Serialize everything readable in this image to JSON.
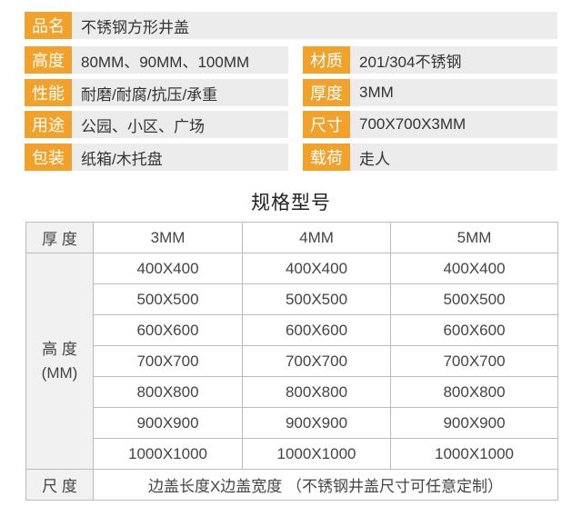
{
  "specs": [
    [
      {
        "label": "品名",
        "value": "不锈钢方形井盖"
      }
    ],
    [
      {
        "label": "高度",
        "value": "80MM、90MM、100MM"
      },
      {
        "label": "材质",
        "value": "201/304不锈钢"
      }
    ],
    [
      {
        "label": "性能",
        "value": "耐磨/耐腐/抗压/承重"
      },
      {
        "label": "厚度",
        "value": "3MM"
      }
    ],
    [
      {
        "label": "用途",
        "value": "公园、小区、广场"
      },
      {
        "label": "尺寸",
        "value": "700X700X3MM"
      }
    ],
    [
      {
        "label": "包装",
        "value": "纸箱/木托盘"
      },
      {
        "label": "载荷",
        "value": "走人"
      }
    ]
  ],
  "table": {
    "title": "规格型号",
    "thickness_label": "厚 度",
    "thickness_values": [
      "3MM",
      "4MM",
      "5MM"
    ],
    "height_label_line1": "高 度",
    "height_label_line2": "(MM)",
    "rows": [
      [
        "400X400",
        "400X400",
        "400X400"
      ],
      [
        "500X500",
        "500X500",
        "500X500"
      ],
      [
        "600X600",
        "600X600",
        "600X600"
      ],
      [
        "700X700",
        "700X700",
        "700X700"
      ],
      [
        "800X800",
        "800X800",
        "800X800"
      ],
      [
        "900X900",
        "900X900",
        "900X900"
      ],
      [
        "1000X1000",
        "1000X1000",
        "1000X1000"
      ]
    ],
    "size_label": "尺 度",
    "size_note": "边盖长度X边盖宽度 （不锈钢井盖尺寸可任意定制）"
  }
}
